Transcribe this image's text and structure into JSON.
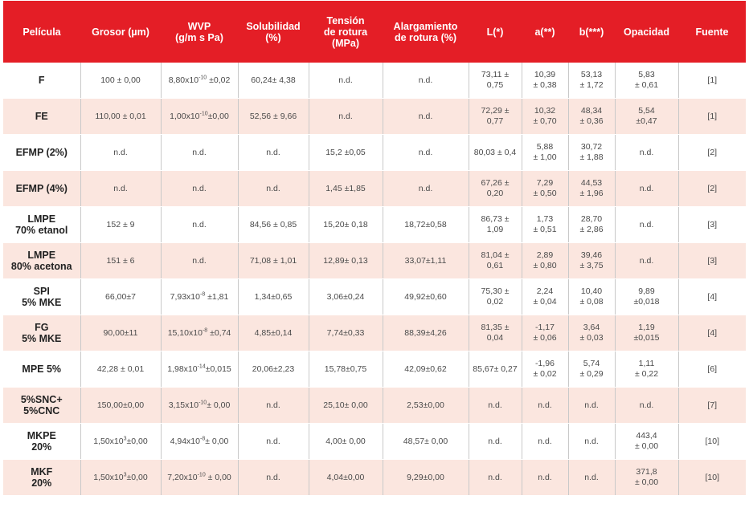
{
  "headers": [
    "Película",
    "Grosor (µm)",
    "WVP\n(g/m s Pa)",
    "Solubilidad\n(%)",
    "Tensión\nde rotura\n(MPa)",
    "Alargamiento\nde rotura (%)",
    "L(*)",
    "a(**)",
    "b(***)",
    "Opacidad",
    "Fuente"
  ],
  "rows": [
    {
      "pelicula": "F",
      "grosor": "100 ± 0,00",
      "wvp": "8,80x10",
      "wvp_exp": "-10",
      "wvp_err": " ±0,02",
      "solubilidad": "60,24± 4,38",
      "tension": "n.d.",
      "alargamiento": "n.d.",
      "L": "73,11 ±\n0,75",
      "a": "10,39\n± 0,38",
      "b": "53,13\n± 1,72",
      "opacidad": "5,83\n± 0,61",
      "fuente": "[1]"
    },
    {
      "pelicula": "FE",
      "grosor": "110,00 ± 0,01",
      "wvp": "1,00x10",
      "wvp_exp": "-10",
      "wvp_err": "±0,00",
      "solubilidad": "52,56 ± 9,66",
      "tension": "n.d.",
      "alargamiento": "n.d.",
      "L": "72,29 ±\n0,77",
      "a": "10,32\n± 0,70",
      "b": "48,34\n± 0,36",
      "opacidad": "5,54\n±0,47",
      "fuente": "[1]"
    },
    {
      "pelicula": "EFMP (2%)",
      "grosor": "n.d.",
      "wvp": "n.d.",
      "wvp_exp": "",
      "wvp_err": "",
      "solubilidad": "n.d.",
      "tension": "15,2 ±0,05",
      "alargamiento": "n.d.",
      "L": "80,03 ± 0,4",
      "a": "5,88\n± 1,00",
      "b": "30,72\n± 1,88",
      "opacidad": "n.d.",
      "fuente": "[2]"
    },
    {
      "pelicula": "EFMP (4%)",
      "grosor": "n.d.",
      "wvp": "n.d.",
      "wvp_exp": "",
      "wvp_err": "",
      "solubilidad": "n.d.",
      "tension": "1,45 ±1,85",
      "alargamiento": "n.d.",
      "L": "67,26 ±\n0,20",
      "a": "7,29\n± 0,50",
      "b": "44,53\n± 1,96",
      "opacidad": "n.d.",
      "fuente": "[2]"
    },
    {
      "pelicula": "LMPE\n70% etanol",
      "grosor": "152 ± 9",
      "wvp": "n.d.",
      "wvp_exp": "",
      "wvp_err": "",
      "solubilidad": "84,56 ± 0,85",
      "tension": "15,20± 0,18",
      "alargamiento": "18,72±0,58",
      "L": "86,73 ±\n1,09",
      "a": "1,73\n± 0,51",
      "b": "28,70\n± 2,86",
      "opacidad": "n.d.",
      "fuente": "[3]"
    },
    {
      "pelicula": "LMPE\n80% acetona",
      "grosor": "151 ± 6",
      "wvp": "n.d.",
      "wvp_exp": "",
      "wvp_err": "",
      "solubilidad": "71,08 ± 1,01",
      "tension": "12,89± 0,13",
      "alargamiento": "33,07±1,11",
      "L": "81,04 ±\n0,61",
      "a": "2,89\n± 0,80",
      "b": "39,46\n± 3,75",
      "opacidad": "n.d.",
      "fuente": "[3]"
    },
    {
      "pelicula": "SPI\n5% MKE",
      "grosor": "66,00±7",
      "wvp": "7,93x10",
      "wvp_exp": "-8",
      "wvp_err": " ±1,81",
      "solubilidad": "1,34±0,65",
      "tension": "3,06±0,24",
      "alargamiento": "49,92±0,60",
      "L": "75,30 ±\n0,02",
      "a": "2,24\n± 0,04",
      "b": "10,40\n± 0,08",
      "opacidad": "9,89\n±0,018",
      "fuente": "[4]"
    },
    {
      "pelicula": "FG\n5% MKE",
      "grosor": "90,00±11",
      "wvp": "15,10x10",
      "wvp_exp": "-8",
      "wvp_err": " ±0,74",
      "solubilidad": "4,85±0,14",
      "tension": "7,74±0,33",
      "alargamiento": "88,39±4,26",
      "L": "81,35 ±\n0,04",
      "a": "-1,17\n± 0,06",
      "b": "3,64\n± 0,03",
      "opacidad": "1,19\n±0,015",
      "fuente": "[4]"
    },
    {
      "pelicula": "MPE 5%",
      "grosor": "42,28 ± 0,01",
      "wvp": "1,98x10",
      "wvp_exp": "-14",
      "wvp_err": "±0,015",
      "solubilidad": "20,06±2,23",
      "tension": "15,78±0,75",
      "alargamiento": "42,09±0,62",
      "L": "85,67± 0,27",
      "a": "-1,96\n± 0,02",
      "b": "5,74\n± 0,29",
      "opacidad": "1,11\n± 0,22",
      "fuente": "[6]"
    },
    {
      "pelicula": "5%SNC+\n5%CNC",
      "grosor": "150,00±0,00",
      "wvp": "3,15x10",
      "wvp_exp": "-10",
      "wvp_err": "± 0,00",
      "solubilidad": "n.d.",
      "tension": "25,10± 0,00",
      "alargamiento": "2,53±0,00",
      "L": "n.d.",
      "a": "n.d.",
      "b": "n.d.",
      "opacidad": "n.d.",
      "fuente": "[7]"
    },
    {
      "pelicula": "MKPE\n20%",
      "grosor": "1,50x10",
      "grosor_exp": "3",
      "grosor_err": "±0,00",
      "wvp": "4,94x10",
      "wvp_exp": "-8",
      "wvp_err": "± 0,00",
      "solubilidad": "n.d.",
      "tension": "4,00± 0,00",
      "alargamiento": "48,57± 0,00",
      "L": "n.d.",
      "a": "n.d.",
      "b": "n.d.",
      "opacidad": "443,4\n± 0,00",
      "fuente": "[10]"
    },
    {
      "pelicula": "MKF\n20%",
      "grosor": "1,50x10",
      "grosor_exp": "3",
      "grosor_err": "±0,00",
      "wvp": "7,20x10",
      "wvp_exp": "-10",
      "wvp_err": " ± 0,00",
      "solubilidad": "n.d.",
      "tension": "4,04±0,00",
      "alargamiento": "9,29±0,00",
      "L": "n.d.",
      "a": "n.d.",
      "b": "n.d.",
      "opacidad": "371,8\n± 0,00",
      "fuente": "[10]"
    }
  ]
}
